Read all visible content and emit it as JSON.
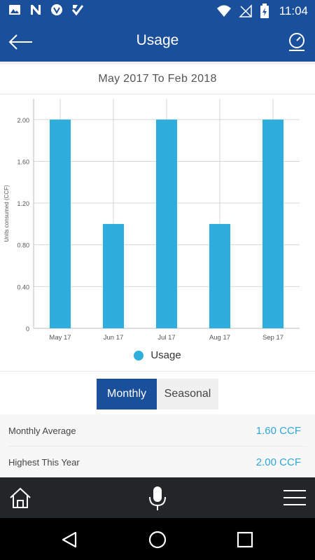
{
  "status_bar": {
    "time": "11:04",
    "left_icons": [
      "image-icon",
      "n-icon",
      "vpn-shield-icon",
      "check-icon"
    ],
    "right_icons": [
      "wifi-icon",
      "signal-icon",
      "battery-charging-icon"
    ]
  },
  "app_bar": {
    "title": "Usage",
    "back_icon": "arrow-left-icon",
    "action_icon": "meter-icon"
  },
  "period": "May 2017 To Feb 2018",
  "chart_data": {
    "type": "bar",
    "categories": [
      "May 17",
      "Jun 17",
      "Jul 17",
      "Aug 17",
      "Sep 17"
    ],
    "values": [
      2.0,
      1.0,
      2.0,
      1.0,
      2.0
    ],
    "ylabel": "Units consumed (CCF)",
    "xlabel": "",
    "ylim": [
      0,
      2.2
    ],
    "y_ticks": [
      "0",
      "0.40",
      "0.80",
      "1.20",
      "1.60",
      "2.00"
    ],
    "y_tick_values": [
      0,
      0.4,
      0.8,
      1.2,
      1.6,
      2.0
    ],
    "grid": true,
    "color": "#2eaedc",
    "legend": {
      "position": "bottom",
      "label": "Usage"
    }
  },
  "toggle": {
    "monthly_label": "Monthly",
    "seasonal_label": "Seasonal",
    "selected": "Monthly"
  },
  "stats": {
    "monthly_average_label": "Monthly Average",
    "monthly_average_value": "1.60 CCF",
    "highest_label": "Highest This Year",
    "highest_value": "2.00 CCF"
  },
  "bottom_bar": {
    "icons": [
      "home-icon",
      "microphone-icon",
      "hamburger-menu-icon"
    ]
  },
  "nav_bar": {
    "icons": [
      "nav-back-icon",
      "nav-home-icon",
      "nav-recent-icon"
    ]
  },
  "colors": {
    "primary": "#1a4f9b",
    "accent": "#2eaedc",
    "value": "#2ea7d8",
    "bottom_bar": "#232629"
  }
}
